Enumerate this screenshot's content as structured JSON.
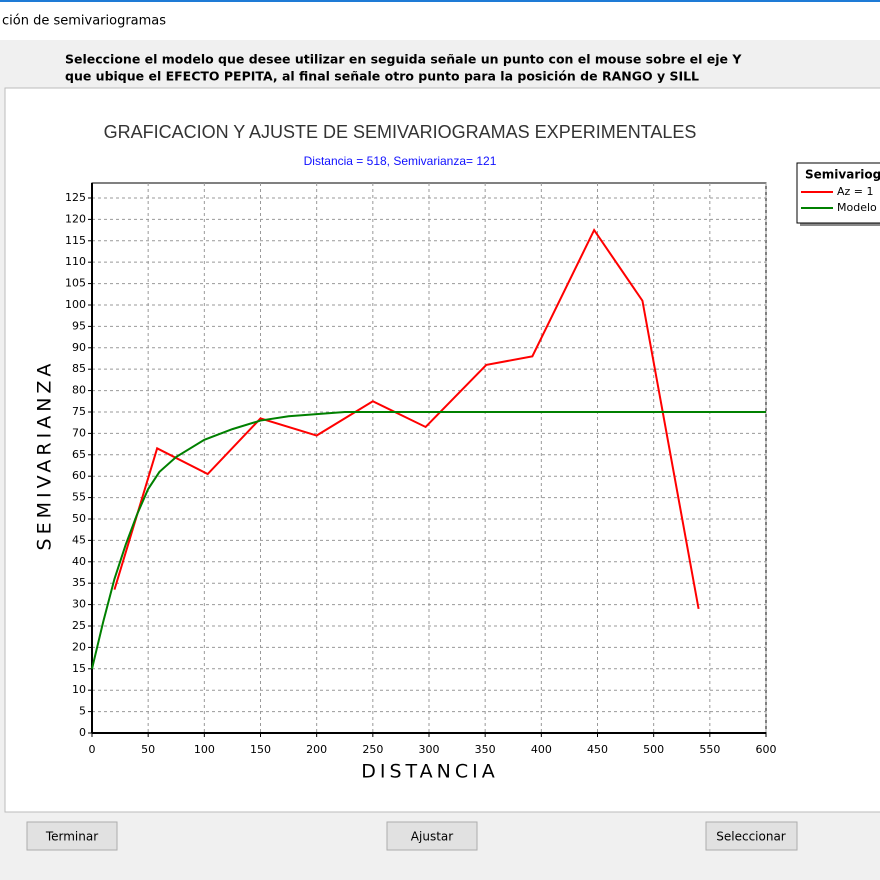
{
  "window": {
    "title": "ción de semivariogramas"
  },
  "instructions": [
    "Seleccione el modelo que desee utilizar en seguida señale un punto con el mouse sobre el eje Y",
    "que ubique el EFECTO PEPITA, al final señale otro punto para la posición de RANGO y SILL"
  ],
  "chart_data": {
    "type": "line",
    "title": "GRAFICACION Y AJUSTE DE SEMIVARIOGRAMAS EXPERIMENTALES",
    "subtitle": "Distancia = 518,  Semivarianza= 121",
    "x_label": "DISTANCIA",
    "y_label": "SEMIVARIANZA",
    "legend_title": "Semivariog",
    "legend": "top-right",
    "grid": true,
    "xlim": [
      0,
      600
    ],
    "ylim": [
      0,
      128.5
    ],
    "xticks": [
      0,
      50,
      100,
      150,
      200,
      250,
      300,
      350,
      400,
      450,
      500,
      550,
      600
    ],
    "yticks": [
      0,
      5,
      10,
      15,
      20,
      25,
      30,
      35,
      40,
      45,
      50,
      55,
      60,
      65,
      70,
      75,
      80,
      85,
      90,
      95,
      100,
      105,
      110,
      115,
      120,
      125
    ],
    "series": [
      {
        "name": "Az = 1",
        "color": "#ff0000",
        "x": [
          20,
          58,
          103,
          150,
          200,
          250,
          297,
          351,
          392,
          447,
          490,
          540
        ],
        "values": [
          33.5,
          66.5,
          60.5,
          73.5,
          69.5,
          77.5,
          71.5,
          86,
          88,
          117.5,
          101,
          29
        ]
      },
      {
        "name": "Modelo",
        "color": "#008000",
        "x": [
          0,
          10,
          20,
          30,
          40,
          50,
          60,
          75,
          100,
          125,
          150,
          175,
          200,
          225,
          250,
          300,
          400,
          500,
          600
        ],
        "values": [
          15,
          26,
          36,
          44,
          51,
          57,
          61,
          64.5,
          68.5,
          71,
          73,
          74,
          74.5,
          75,
          75,
          75,
          75,
          75,
          75
        ]
      }
    ]
  },
  "buttons": [
    "Terminar",
    "Ajustar",
    "Seleccionar"
  ]
}
